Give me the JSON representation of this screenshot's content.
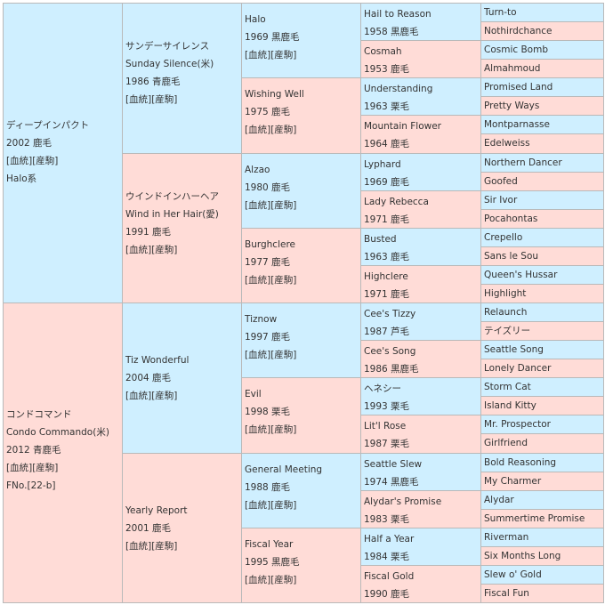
{
  "colors": {
    "male": "#cfefff",
    "female": "#ffdcd7",
    "border": "#b9b9b9",
    "link": "#1a4fb8"
  },
  "links": "[血統][産駒]",
  "gen1": [
    {
      "name": "ディープインパクト",
      "meta": "2002 鹿毛",
      "note": "Halo系",
      "sex": "m"
    },
    {
      "name": "コンドコマンド",
      "en": "Condo Commando(米)",
      "meta": "2012 青鹿毛",
      "note": "FNo.[22-b]",
      "sex": "f"
    }
  ],
  "gen2": [
    {
      "name": "サンデーサイレンス",
      "en": "Sunday Silence(米)",
      "meta": "1986 青鹿毛",
      "sex": "m"
    },
    {
      "name": "ウインドインハーヘア",
      "en": "Wind in Her Hair(愛)",
      "meta": "1991 鹿毛",
      "sex": "f"
    },
    {
      "name": "Tiz Wonderful",
      "meta": "2004 鹿毛",
      "sex": "m"
    },
    {
      "name": "Yearly Report",
      "meta": "2001 鹿毛",
      "sex": "f"
    }
  ],
  "gen3": [
    {
      "name": "Halo",
      "meta": "1969 黒鹿毛",
      "sex": "m"
    },
    {
      "name": "Wishing Well",
      "meta": "1975 鹿毛",
      "sex": "f"
    },
    {
      "name": "Alzao",
      "meta": "1980 鹿毛",
      "sex": "m"
    },
    {
      "name": "Burghclere",
      "meta": "1977 鹿毛",
      "sex": "f"
    },
    {
      "name": "Tiznow",
      "meta": "1997 鹿毛",
      "sex": "m"
    },
    {
      "name": "Evil",
      "meta": "1998 栗毛",
      "sex": "f"
    },
    {
      "name": "General Meeting",
      "meta": "1988 鹿毛",
      "sex": "m"
    },
    {
      "name": "Fiscal Year",
      "meta": "1995 黒鹿毛",
      "sex": "f"
    }
  ],
  "gen4": [
    {
      "name": "Hail to Reason",
      "meta": "1958 黒鹿毛",
      "sex": "m"
    },
    {
      "name": "Cosmah",
      "meta": "1953 鹿毛",
      "sex": "f"
    },
    {
      "name": "Understanding",
      "meta": "1963 栗毛",
      "sex": "m"
    },
    {
      "name": "Mountain Flower",
      "meta": "1964 鹿毛",
      "sex": "f"
    },
    {
      "name": "Lyphard",
      "meta": "1969 鹿毛",
      "sex": "m"
    },
    {
      "name": "Lady Rebecca",
      "meta": "1971 鹿毛",
      "sex": "f"
    },
    {
      "name": "Busted",
      "meta": "1963 鹿毛",
      "sex": "m"
    },
    {
      "name": "Highclere",
      "meta": "1971 鹿毛",
      "sex": "f"
    },
    {
      "name": "Cee's Tizzy",
      "meta": "1987 芦毛",
      "sex": "m"
    },
    {
      "name": "Cee's Song",
      "meta": "1986 黒鹿毛",
      "sex": "f"
    },
    {
      "name": "ヘネシー",
      "meta": "1993 栗毛",
      "sex": "m"
    },
    {
      "name": "Lit'l Rose",
      "meta": "1987 栗毛",
      "sex": "f"
    },
    {
      "name": "Seattle Slew",
      "meta": "1974 黒鹿毛",
      "sex": "m"
    },
    {
      "name": "Alydar's Promise",
      "meta": "1983 栗毛",
      "sex": "f"
    },
    {
      "name": "Half a Year",
      "meta": "1984 栗毛",
      "sex": "m"
    },
    {
      "name": "Fiscal Gold",
      "meta": "1990 鹿毛",
      "sex": "f"
    }
  ],
  "gen5": [
    {
      "name": "Turn-to",
      "sex": "m"
    },
    {
      "name": "Nothirdchance",
      "sex": "f"
    },
    {
      "name": "Cosmic Bomb",
      "sex": "m"
    },
    {
      "name": "Almahmoud",
      "sex": "f"
    },
    {
      "name": "Promised Land",
      "sex": "m"
    },
    {
      "name": "Pretty Ways",
      "sex": "f"
    },
    {
      "name": "Montparnasse",
      "sex": "m"
    },
    {
      "name": "Edelweiss",
      "sex": "f"
    },
    {
      "name": "Northern Dancer",
      "sex": "m"
    },
    {
      "name": "Goofed",
      "sex": "f"
    },
    {
      "name": "Sir Ivor",
      "sex": "m"
    },
    {
      "name": "Pocahontas",
      "sex": "f"
    },
    {
      "name": "Crepello",
      "sex": "m"
    },
    {
      "name": "Sans le Sou",
      "sex": "f"
    },
    {
      "name": "Queen's Hussar",
      "sex": "m"
    },
    {
      "name": "Highlight",
      "sex": "f"
    },
    {
      "name": "Relaunch",
      "sex": "m"
    },
    {
      "name": "テイズリー",
      "sex": "f"
    },
    {
      "name": "Seattle Song",
      "sex": "m"
    },
    {
      "name": "Lonely Dancer",
      "sex": "f"
    },
    {
      "name": "Storm Cat",
      "sex": "m"
    },
    {
      "name": "Island Kitty",
      "sex": "f"
    },
    {
      "name": "Mr. Prospector",
      "sex": "m"
    },
    {
      "name": "Girlfriend",
      "sex": "f"
    },
    {
      "name": "Bold Reasoning",
      "sex": "m"
    },
    {
      "name": "My Charmer",
      "sex": "f"
    },
    {
      "name": "Alydar",
      "sex": "m"
    },
    {
      "name": "Summertime Promise",
      "sex": "f"
    },
    {
      "name": "Riverman",
      "sex": "m"
    },
    {
      "name": "Six Months Long",
      "sex": "f"
    },
    {
      "name": "Slew o' Gold",
      "sex": "m"
    },
    {
      "name": "Fiscal Fun",
      "sex": "f"
    }
  ]
}
